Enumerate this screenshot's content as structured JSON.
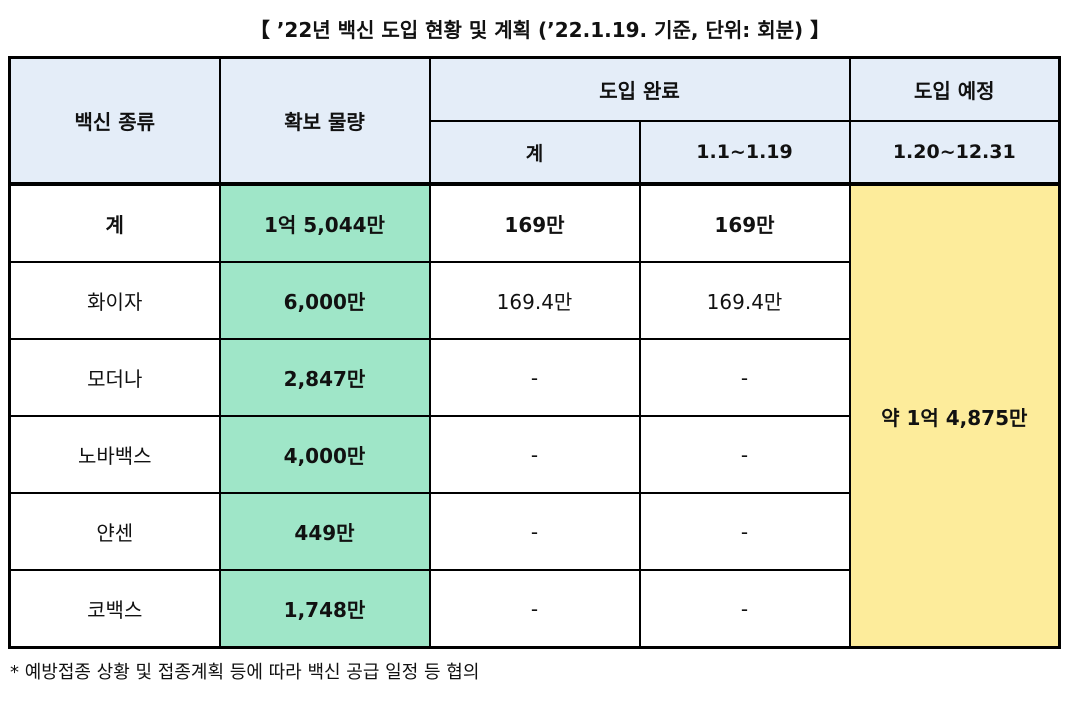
{
  "title": "【 ’22년 백신 도입 현황 및 계획 (’22.1.19. 기준, 단위: 회분) 】",
  "headers": {
    "vaccine_type": "백신 종류",
    "secured_amount": "확보 물량",
    "introduced_done": "도입 완료",
    "introduced_planned": "도입 예정",
    "sub_total": "계",
    "sub_period_done": "1.1~1.19",
    "sub_period_planned": "1.20~12.31"
  },
  "rows": [
    {
      "name": "계",
      "secured": "1억 5,044만",
      "total_done": "169만",
      "period_done": "169만"
    },
    {
      "name": "화이자",
      "secured": "6,000만",
      "total_done": "169.4만",
      "period_done": "169.4만"
    },
    {
      "name": "모더나",
      "secured": "2,847만",
      "total_done": "-",
      "period_done": "-"
    },
    {
      "name": "노바백스",
      "secured": "4,000만",
      "total_done": "-",
      "period_done": "-"
    },
    {
      "name": "얀센",
      "secured": "449만",
      "total_done": "-",
      "period_done": "-"
    },
    {
      "name": "코백스",
      "secured": "1,748만",
      "total_done": "-",
      "period_done": "-"
    }
  ],
  "planned_total": "약 1억 4,875만",
  "footnote": "* 예방접종 상황 및 접종계획 등에 따라 백신 공급 일정 등 협의",
  "colors": {
    "header_bg": "#e4edf8",
    "secured_bg": "#9fe6c8",
    "planned_bg": "#fdec9b"
  }
}
